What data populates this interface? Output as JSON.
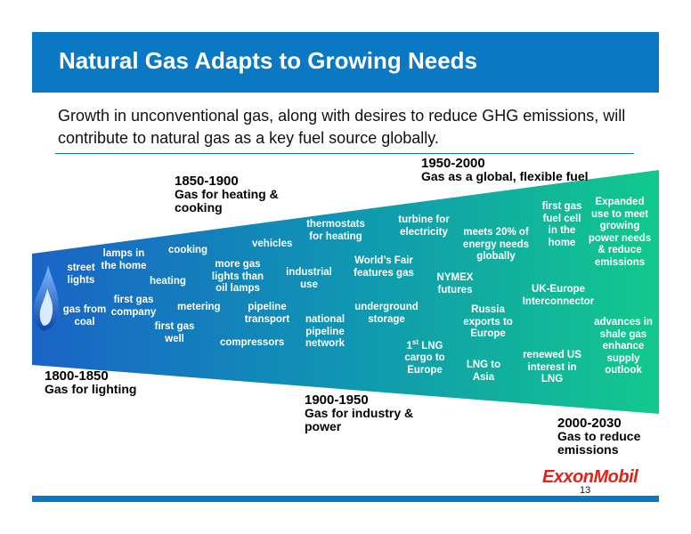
{
  "header": {
    "title": "Natural Gas Adapts to Growing Needs"
  },
  "subtitle": "Growth in unconventional gas, along with desires to reduce GHG emissions, will contribute to natural gas as a key fuel source globally.",
  "colors": {
    "header": "#0b78c4",
    "wedge_start": "#1a63c6",
    "wedge_end": "#12c98c",
    "logo": "#e2231a"
  },
  "eras": [
    {
      "years": "1800-1850",
      "desc": "Gas for lighting"
    },
    {
      "years": "1850-1900",
      "desc": "Gas for heating & cooking"
    },
    {
      "years": "1900-1950",
      "desc": "Gas for industry & power"
    },
    {
      "years": "1950-2000",
      "desc": "Gas as a global, flexible fuel"
    },
    {
      "years": "2000-2030",
      "desc": "Gas to reduce emissions"
    }
  ],
  "milestones": {
    "street_lights": "street lights",
    "gas_from_coal": "gas from coal",
    "lamps_in_home": "lamps in the home",
    "first_gas_company": "first gas company",
    "cooking": "cooking",
    "heating": "heating",
    "first_gas_well": "first gas well",
    "metering": "metering",
    "more_gas_lights": "more gas lights than oil lamps",
    "vehicles": "vehicles",
    "pipeline_transport": "pipeline transport",
    "compressors": "compressors",
    "industrial_use": "industrial use",
    "thermostats": "thermostats for heating",
    "national_pipeline": "national pipeline network",
    "worlds_fair": "World’s Fair features gas",
    "underground_storage": "underground storage",
    "turbine": "turbine for electricity",
    "first_lng_num": "1",
    "first_lng_sup": "st",
    "first_lng_rest": " LNG cargo to Europe",
    "nymex": "NYMEX futures",
    "meets_20": "meets 20% of energy needs globally",
    "russia_exports": "Russia exports to Europe",
    "lng_to_asia": "LNG to Asia",
    "first_gas_fuel_cell": "first gas fuel cell in the home",
    "uk_europe": "UK-Europe Interconnector",
    "renewed_us": "renewed US interest in LNG",
    "expanded_use": "Expanded use to meet growing power needs & reduce emissions",
    "advances_shale": "advances in shale gas enhance supply outlook"
  },
  "footer": {
    "logo": "ExxonMobil",
    "page_number": "13"
  }
}
